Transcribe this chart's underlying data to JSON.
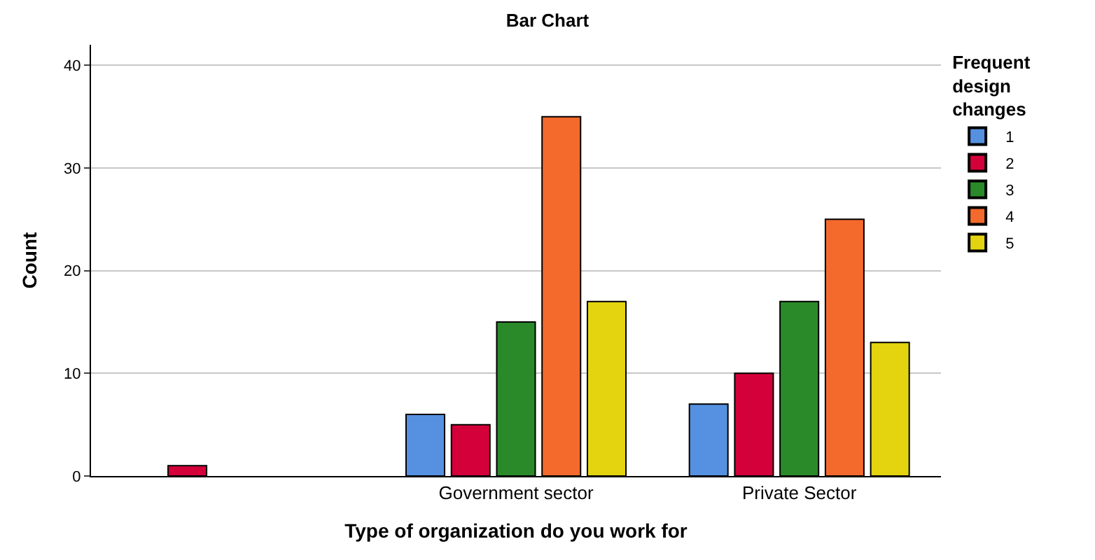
{
  "chart_data": {
    "type": "bar",
    "title": "Bar Chart",
    "xlabel": "Type of organization do you work for",
    "ylabel": "Count",
    "legend_title": "Frequent design changes",
    "categories": [
      null,
      "Government sector",
      "Private Sector"
    ],
    "series": [
      {
        "name": "1",
        "color": "#5591e0",
        "values": [
          null,
          6,
          7
        ]
      },
      {
        "name": "2",
        "color": "#d4003a",
        "values": [
          1,
          5,
          10
        ]
      },
      {
        "name": "3",
        "color": "#2a8a2a",
        "values": [
          null,
          15,
          17
        ]
      },
      {
        "name": "4",
        "color": "#f46a2c",
        "values": [
          null,
          35,
          25
        ]
      },
      {
        "name": "5",
        "color": "#e3d40f",
        "values": [
          null,
          17,
          13
        ]
      }
    ],
    "ylim": [
      0,
      42
    ],
    "yticks": [
      0,
      10,
      20,
      30,
      40
    ],
    "grid": "y",
    "legend": "top right"
  }
}
